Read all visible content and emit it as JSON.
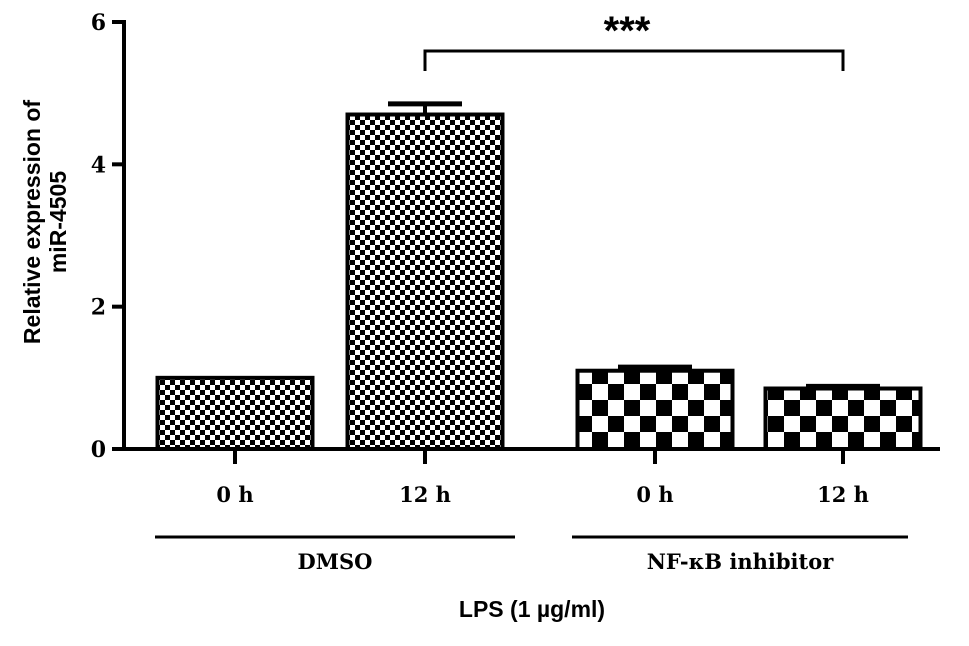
{
  "chart_data": {
    "type": "bar",
    "categories": [
      "0 h",
      "12 h",
      "0 h",
      "12 h"
    ],
    "values": [
      1.0,
      4.7,
      1.1,
      0.85
    ],
    "errors": [
      0.0,
      0.15,
      0.05,
      0.03
    ],
    "fill_patterns": [
      "fine-checker",
      "fine-checker",
      "coarse-checker",
      "coarse-checker"
    ],
    "groups": [
      {
        "label": "DMSO",
        "categories": [
          0,
          1
        ]
      },
      {
        "label": "NF-κB inhibitor",
        "categories": [
          2,
          3
        ]
      }
    ],
    "yticks": [
      0,
      2,
      4,
      6
    ],
    "ylim": [
      0,
      6
    ],
    "ylabel_line1": "Relative expression of",
    "ylabel_line2": "miR-4505",
    "xlabel": "LPS (1 µg/ml)",
    "significance": {
      "label": "***",
      "from": 1,
      "to": 3
    },
    "colors": {
      "bar_fill": "#000000",
      "bar_background": "#ffffff",
      "axis": "#000000"
    }
  }
}
